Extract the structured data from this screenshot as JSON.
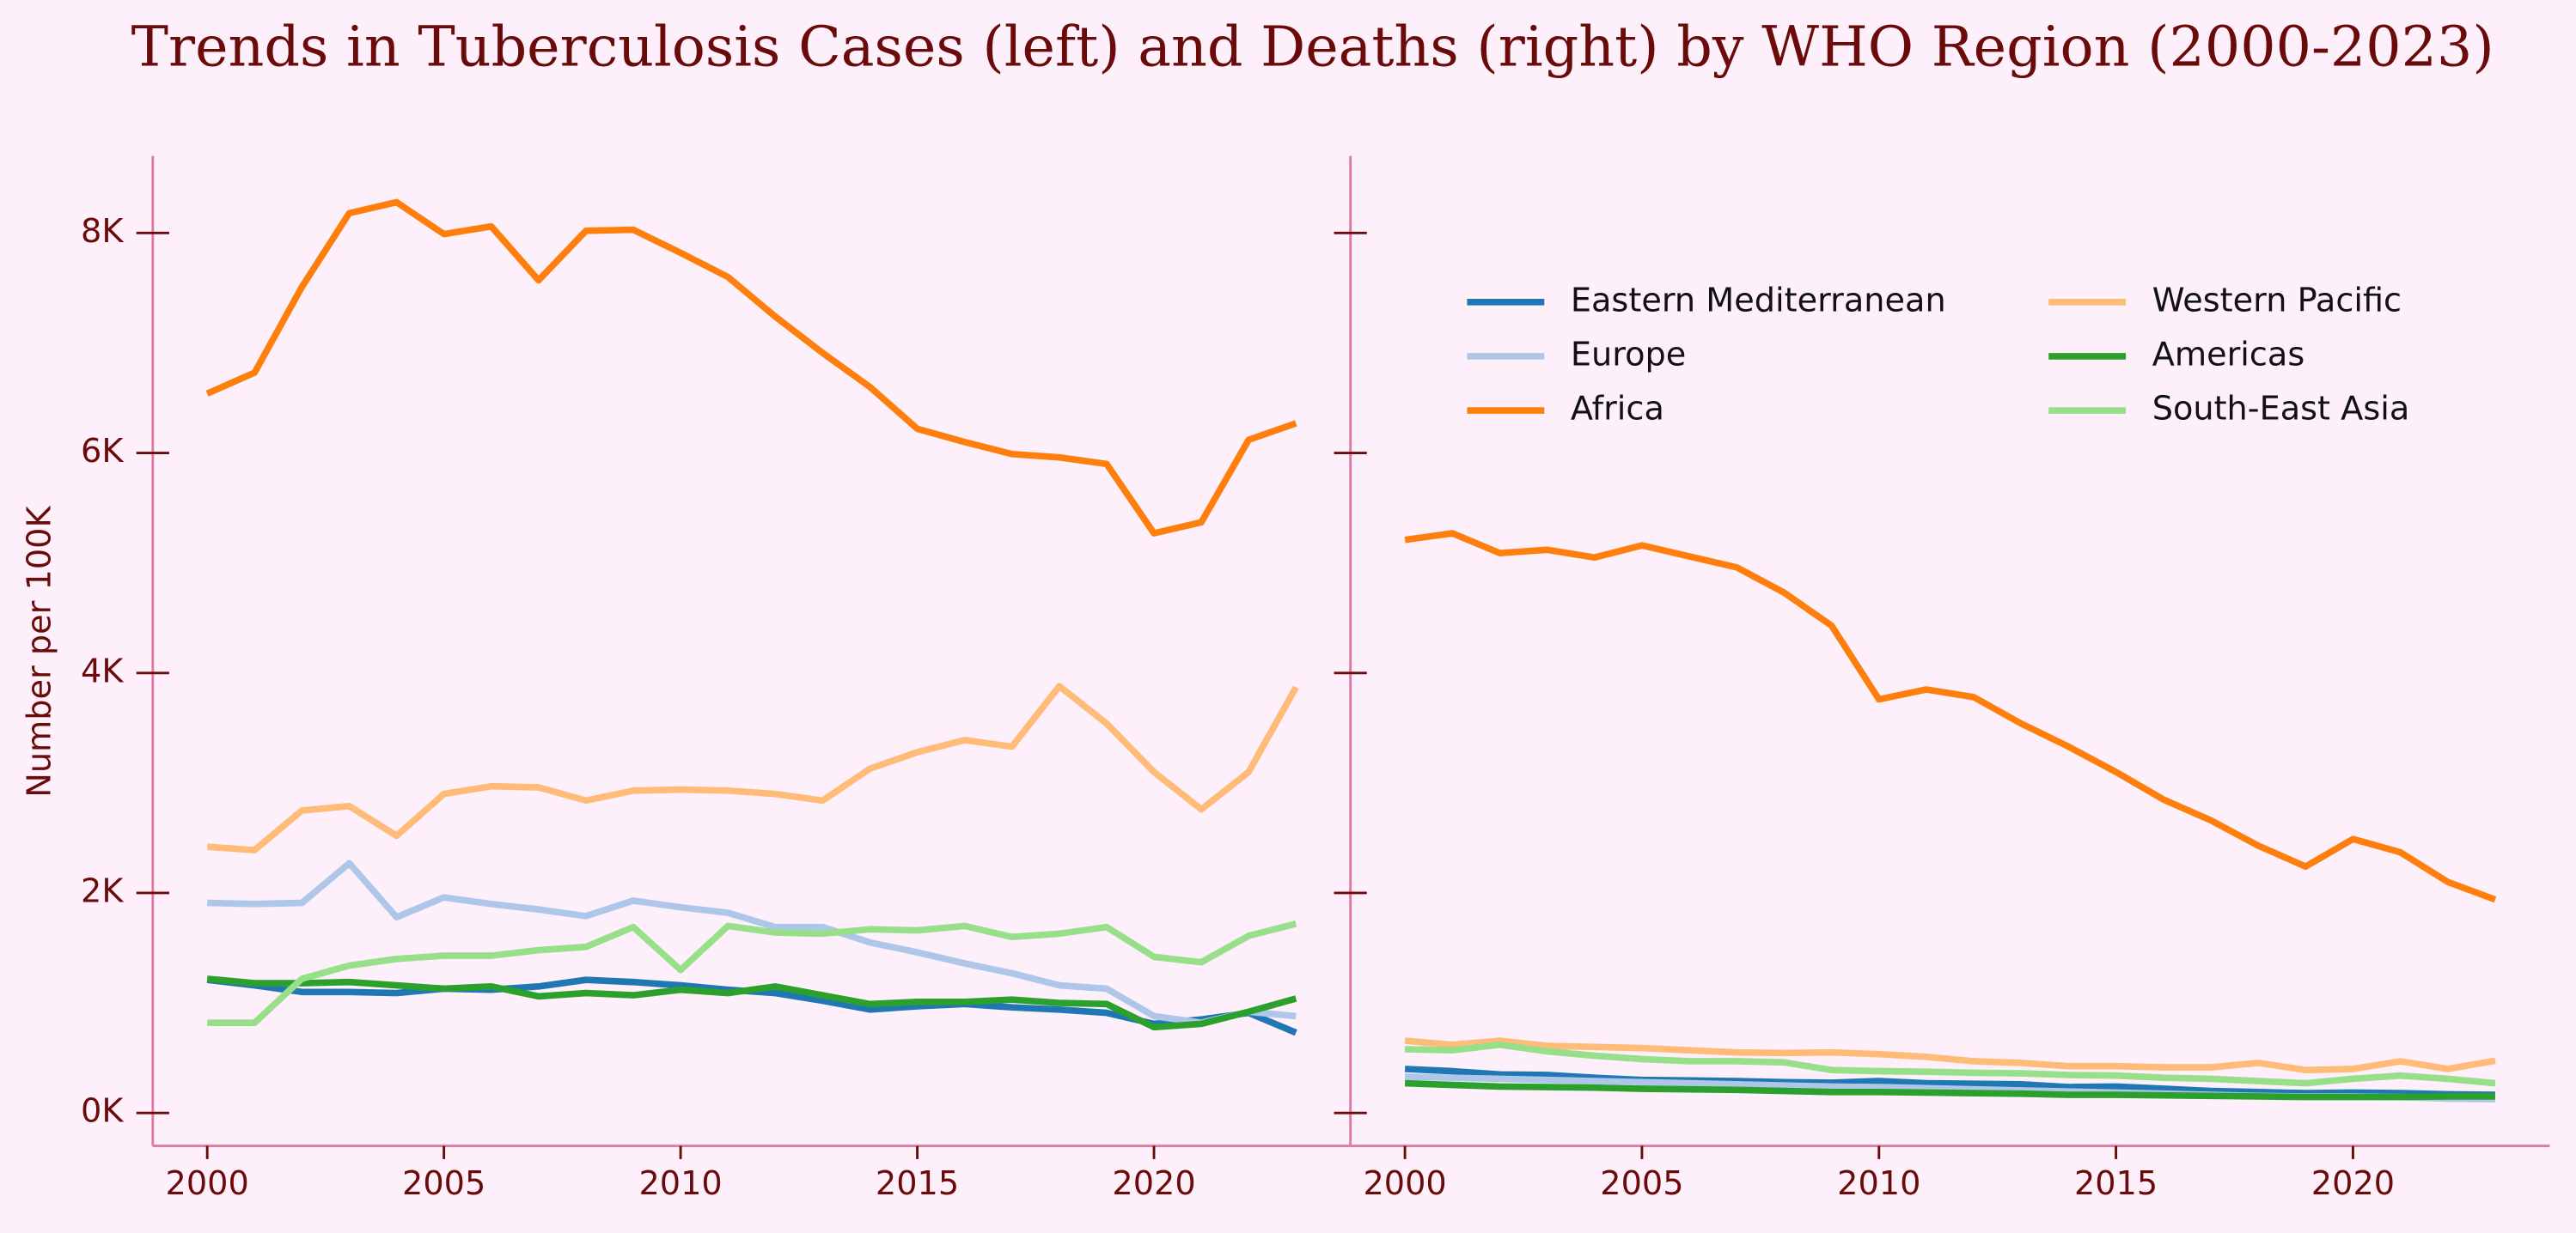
{
  "title": "Trends in Tuberculosis Cases (left) and Deaths (right) by WHO Region (2000-2023)",
  "chart_data": [
    {
      "type": "line",
      "ylabel": "Number per 100K",
      "x": [
        2000,
        2001,
        2002,
        2003,
        2004,
        2005,
        2006,
        2007,
        2008,
        2009,
        2010,
        2011,
        2012,
        2013,
        2014,
        2015,
        2016,
        2017,
        2018,
        2019,
        2020,
        2021,
        2022,
        2023
      ],
      "xlim": [
        1998.85,
        2024.15
      ],
      "xticks": [
        2000,
        2005,
        2010,
        2015,
        2020
      ],
      "ylim": [
        -300,
        8700
      ],
      "yticks": [
        {
          "value": 0,
          "label": "0K"
        },
        {
          "value": 2000,
          "label": "2K"
        },
        {
          "value": 4000,
          "label": "4K"
        },
        {
          "value": 6000,
          "label": "6K"
        },
        {
          "value": 8000,
          "label": "8K"
        }
      ],
      "tick_labels": true,
      "series": [
        {
          "name": "Eastern Mediterranean",
          "color": "#1f77b4",
          "values": [
            1210,
            1160,
            1100,
            1100,
            1090,
            1130,
            1120,
            1150,
            1210,
            1190,
            1160,
            1120,
            1090,
            1020,
            940,
            970,
            990,
            960,
            940,
            910,
            810,
            850,
            910,
            730
          ]
        },
        {
          "name": "Europe",
          "color": "#aec7e8",
          "values": [
            1910,
            1900,
            1910,
            2270,
            1780,
            1960,
            1900,
            1850,
            1790,
            1930,
            1870,
            1820,
            1690,
            1690,
            1550,
            1460,
            1360,
            1270,
            1160,
            1130,
            880,
            820,
            920,
            880
          ]
        },
        {
          "name": "Africa",
          "color": "#ff7f0e",
          "values": [
            6540,
            6730,
            7510,
            8180,
            8280,
            7990,
            8060,
            7570,
            8020,
            8030,
            7820,
            7600,
            7240,
            6910,
            6600,
            6220,
            6100,
            5990,
            5960,
            5900,
            5270,
            5370,
            6120,
            6270
          ]
        },
        {
          "name": "Western Pacific",
          "color": "#ffbb78",
          "values": [
            2420,
            2390,
            2750,
            2790,
            2520,
            2900,
            2970,
            2960,
            2840,
            2930,
            2940,
            2930,
            2900,
            2840,
            3130,
            3280,
            3390,
            3330,
            3880,
            3540,
            3100,
            2760,
            3100,
            3870
          ]
        },
        {
          "name": "Americas",
          "color": "#2ca02c",
          "values": [
            1220,
            1180,
            1180,
            1190,
            1160,
            1130,
            1150,
            1060,
            1090,
            1070,
            1120,
            1090,
            1150,
            1070,
            990,
            1010,
            1010,
            1030,
            1000,
            990,
            780,
            810,
            920,
            1040
          ]
        },
        {
          "name": "South-East Asia",
          "color": "#98df8a",
          "values": [
            820,
            820,
            1220,
            1340,
            1400,
            1430,
            1430,
            1480,
            1510,
            1690,
            1300,
            1700,
            1640,
            1630,
            1670,
            1660,
            1700,
            1600,
            1630,
            1690,
            1420,
            1370,
            1610,
            1720
          ]
        }
      ]
    },
    {
      "type": "line",
      "x": [
        2000,
        2001,
        2002,
        2003,
        2004,
        2005,
        2006,
        2007,
        2008,
        2009,
        2010,
        2011,
        2012,
        2013,
        2014,
        2015,
        2016,
        2017,
        2018,
        2019,
        2020,
        2021,
        2022,
        2023
      ],
      "xlim": [
        1998.85,
        2024.15
      ],
      "xticks": [
        2000,
        2005,
        2010,
        2015,
        2020
      ],
      "ylim": [
        -300,
        8700
      ],
      "yticks": [
        0,
        2000,
        4000,
        6000,
        8000
      ],
      "tick_labels": false,
      "legend": "upper center",
      "legend_columns": 2,
      "series": [
        {
          "name": "Eastern Mediterranean",
          "color": "#1f77b4",
          "values": [
            400,
            380,
            350,
            345,
            320,
            300,
            295,
            290,
            280,
            275,
            290,
            270,
            265,
            260,
            235,
            240,
            220,
            200,
            190,
            180,
            185,
            180,
            170,
            165
          ]
        },
        {
          "name": "Europe",
          "color": "#aec7e8",
          "values": [
            330,
            320,
            310,
            300,
            290,
            280,
            270,
            260,
            250,
            240,
            235,
            225,
            215,
            205,
            195,
            185,
            175,
            165,
            155,
            150,
            150,
            145,
            130,
            125
          ]
        },
        {
          "name": "Africa",
          "color": "#ff7f0e",
          "values": [
            5210,
            5270,
            5090,
            5120,
            5050,
            5160,
            5060,
            4960,
            4730,
            4430,
            3760,
            3850,
            3780,
            3540,
            3330,
            3100,
            2850,
            2660,
            2430,
            2240,
            2490,
            2370,
            2100,
            1940
          ]
        },
        {
          "name": "Western Pacific",
          "color": "#ffbb78",
          "values": [
            657,
            620,
            657,
            610,
            600,
            590,
            570,
            550,
            545,
            550,
            535,
            510,
            470,
            455,
            425,
            425,
            415,
            415,
            455,
            390,
            400,
            470,
            400,
            475
          ]
        },
        {
          "name": "Americas",
          "color": "#2ca02c",
          "values": [
            270,
            255,
            240,
            235,
            230,
            220,
            215,
            210,
            200,
            190,
            190,
            185,
            180,
            175,
            165,
            165,
            160,
            155,
            150,
            145,
            145,
            145,
            150,
            150
          ]
        },
        {
          "name": "South-East Asia",
          "color": "#98df8a",
          "values": [
            580,
            570,
            620,
            560,
            520,
            490,
            470,
            470,
            460,
            390,
            380,
            375,
            365,
            360,
            345,
            340,
            320,
            310,
            290,
            270,
            310,
            340,
            310,
            270
          ]
        }
      ]
    }
  ]
}
